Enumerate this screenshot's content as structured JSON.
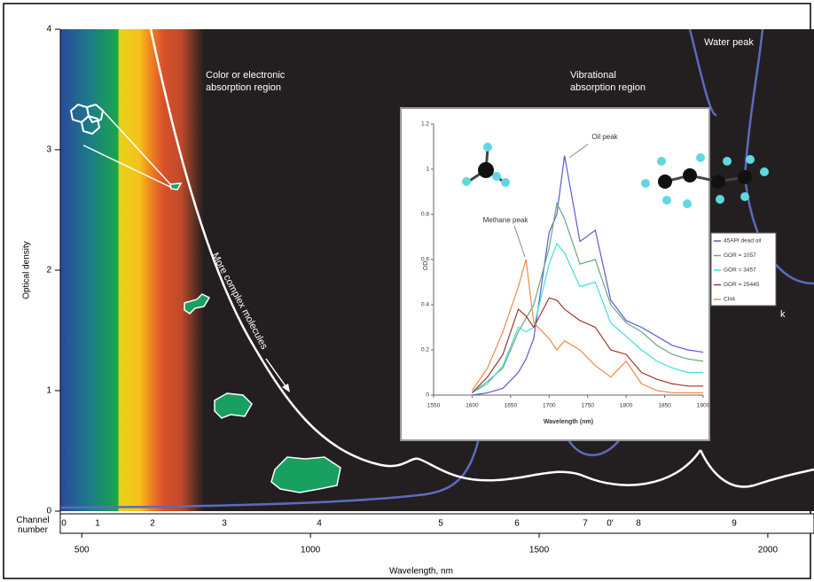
{
  "chart_data": [
    {
      "type": "line",
      "y_label": "Optical density",
      "x_label": "Wavelength, nm",
      "ylim": [
        0,
        4
      ],
      "yticks": [
        0,
        1,
        2,
        3,
        4
      ],
      "xlim": [
        453,
        2101
      ],
      "xticks": [
        500,
        1000,
        1500,
        2000
      ],
      "channel_label": "Channel number",
      "channels": [
        "0",
        "1",
        "2",
        "3",
        "4",
        "5",
        "6",
        "7",
        "0'",
        "8",
        "9"
      ],
      "annotations": [
        "Color or electronic absorption region",
        "Vibrational absorption region",
        "Water peak",
        "More complex molecules",
        "k"
      ]
    },
    {
      "type": "line",
      "y_label": "OD",
      "x_label": "Wavelength (nm)",
      "annotations": [
        "Oil peak",
        "Methane peak"
      ],
      "xlim": [
        1550,
        1900
      ],
      "xticks": [
        1550,
        1600,
        1650,
        1700,
        1750,
        1800,
        1850,
        1900
      ],
      "ylim": [
        0,
        1.2
      ],
      "yticks": [
        0,
        0.2,
        0.4,
        0.6,
        0.8,
        1,
        1.2
      ],
      "legend": "right",
      "x": [
        1600,
        1620,
        1640,
        1660,
        1670,
        1680,
        1700,
        1710,
        1720,
        1740,
        1760,
        1780,
        1800,
        1820,
        1840,
        1860,
        1880,
        1900
      ],
      "series": [
        {
          "name": "45API dead oil",
          "color": "#5a5ad8",
          "values": [
            0,
            0.01,
            0.03,
            0.1,
            0.16,
            0.25,
            0.72,
            0.8,
            1.06,
            0.68,
            0.73,
            0.42,
            0.33,
            0.3,
            0.26,
            0.22,
            0.2,
            0.19
          ]
        },
        {
          "name": "GOR = 1057",
          "color": "#6aa87a",
          "values": [
            0.01,
            0.06,
            0.12,
            0.28,
            0.34,
            0.4,
            0.65,
            0.85,
            0.78,
            0.58,
            0.6,
            0.4,
            0.32,
            0.28,
            0.22,
            0.18,
            0.16,
            0.15
          ]
        },
        {
          "name": "GOR = 3457",
          "color": "#3fdede",
          "values": [
            0.01,
            0.05,
            0.13,
            0.3,
            0.28,
            0.3,
            0.58,
            0.67,
            0.63,
            0.48,
            0.5,
            0.32,
            0.26,
            0.2,
            0.15,
            0.12,
            0.1,
            0.1
          ]
        },
        {
          "name": "GOR = 25445",
          "color": "#a0362e",
          "values": [
            0.01,
            0.08,
            0.18,
            0.38,
            0.35,
            0.3,
            0.43,
            0.42,
            0.38,
            0.33,
            0.3,
            0.2,
            0.18,
            0.1,
            0.07,
            0.05,
            0.04,
            0.04
          ]
        },
        {
          "name": "CH4",
          "color": "#f08a4b",
          "values": [
            0.02,
            0.12,
            0.28,
            0.48,
            0.6,
            0.32,
            0.25,
            0.2,
            0.24,
            0.2,
            0.13,
            0.08,
            0.15,
            0.05,
            0.02,
            0.01,
            0.01,
            0.01
          ]
        }
      ]
    }
  ]
}
